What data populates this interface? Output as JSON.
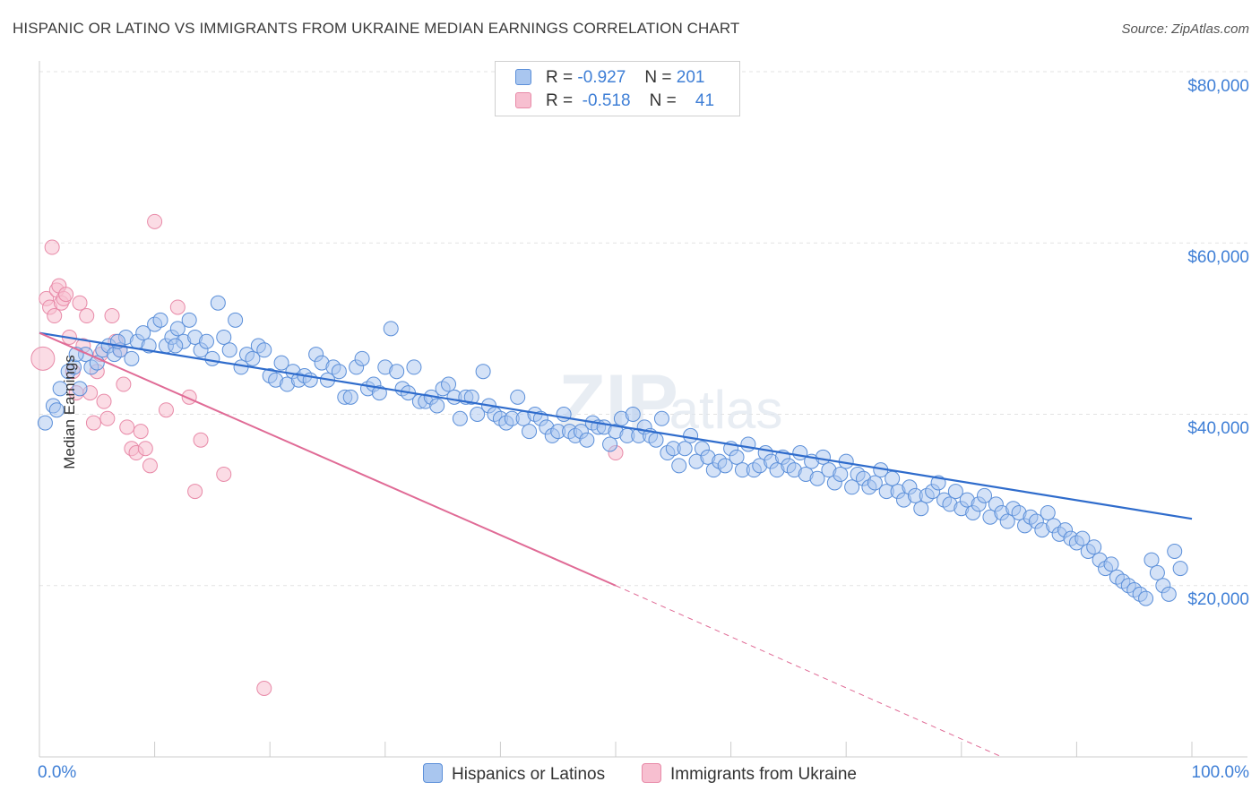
{
  "title": "HISPANIC OR LATINO VS IMMIGRANTS FROM UKRAINE MEDIAN EARNINGS CORRELATION CHART",
  "source": "Source: ZipAtlas.com",
  "colors": {
    "blue_fill": "#a9c6ef",
    "blue_stroke": "#5b8fd9",
    "blue_line": "#2f6ccc",
    "pink_fill": "#f7bfd0",
    "pink_stroke": "#e88aa8",
    "pink_line": "#e06b96",
    "grid": "#e3e3e3",
    "axis_text": "#3f7fd6"
  },
  "legend": {
    "rows": [
      {
        "r_label": "R =",
        "r_value": "-0.927",
        "n_label": "N =",
        "n_value": "201"
      },
      {
        "r_label": "R =",
        "r_value": "-0.518",
        "n_label": "N =",
        "n_value": "41"
      }
    ]
  },
  "bottom_legend": {
    "blue_label": "Hispanics or Latinos",
    "pink_label": "Immigrants from Ukraine"
  },
  "axis": {
    "x_min_label": "0.0%",
    "x_max_label": "100.0%",
    "y_title": "Median Earnings",
    "y_ticks": [
      "$80,000",
      "$60,000",
      "$40,000",
      "$20,000"
    ]
  },
  "chart_data": {
    "type": "scatter",
    "title": "HISPANIC OR LATINO VS IMMIGRANTS FROM UKRAINE MEDIAN EARNINGS CORRELATION CHART",
    "xlabel": "",
    "ylabel": "Median Earnings",
    "xlim": [
      0,
      100
    ],
    "ylim": [
      0,
      80000
    ],
    "y_gridlines": [
      20000,
      40000,
      60000,
      80000
    ],
    "series": [
      {
        "name": "Hispanics or Latinos",
        "r": -0.927,
        "n": 201,
        "trend": {
          "x": [
            0,
            100
          ],
          "y": [
            49500,
            27800
          ]
        },
        "points": [
          [
            0.5,
            39000
          ],
          [
            1.2,
            41000
          ],
          [
            1.8,
            43000
          ],
          [
            2.5,
            45000
          ],
          [
            3,
            45500
          ],
          [
            3.5,
            43000
          ],
          [
            4,
            47000
          ],
          [
            4.5,
            45500
          ],
          [
            5,
            46000
          ],
          [
            5.5,
            47500
          ],
          [
            6,
            48000
          ],
          [
            6.5,
            47000
          ],
          [
            7,
            47500
          ],
          [
            7.5,
            49000
          ],
          [
            8,
            46500
          ],
          [
            8.5,
            48500
          ],
          [
            9,
            49500
          ],
          [
            9.5,
            48000
          ],
          [
            10,
            50500
          ],
          [
            10.5,
            51000
          ],
          [
            11,
            48000
          ],
          [
            11.5,
            49000
          ],
          [
            12,
            50000
          ],
          [
            12.5,
            48500
          ],
          [
            13,
            51000
          ],
          [
            13.5,
            49000
          ],
          [
            14,
            47500
          ],
          [
            14.5,
            48500
          ],
          [
            15,
            46500
          ],
          [
            15.5,
            53000
          ],
          [
            16,
            49000
          ],
          [
            16.5,
            47500
          ],
          [
            17,
            51000
          ],
          [
            17.5,
            45500
          ],
          [
            18,
            47000
          ],
          [
            18.5,
            46500
          ],
          [
            19,
            48000
          ],
          [
            19.5,
            47500
          ],
          [
            20,
            44500
          ],
          [
            20.5,
            44000
          ],
          [
            21,
            46000
          ],
          [
            21.5,
            43500
          ],
          [
            22,
            45000
          ],
          [
            22.5,
            44000
          ],
          [
            23,
            44500
          ],
          [
            23.5,
            44000
          ],
          [
            24,
            47000
          ],
          [
            24.5,
            46000
          ],
          [
            25,
            44000
          ],
          [
            25.5,
            45500
          ],
          [
            26,
            45000
          ],
          [
            26.5,
            42000
          ],
          [
            27,
            42000
          ],
          [
            27.5,
            45500
          ],
          [
            28,
            46500
          ],
          [
            28.5,
            43000
          ],
          [
            29,
            43500
          ],
          [
            29.5,
            42500
          ],
          [
            30,
            45500
          ],
          [
            30.5,
            50000
          ],
          [
            31,
            45000
          ],
          [
            31.5,
            43000
          ],
          [
            32,
            42500
          ],
          [
            32.5,
            45500
          ],
          [
            33,
            41500
          ],
          [
            33.5,
            41500
          ],
          [
            34,
            42000
          ],
          [
            34.5,
            41000
          ],
          [
            35,
            43000
          ],
          [
            35.5,
            43500
          ],
          [
            36,
            42000
          ],
          [
            36.5,
            39500
          ],
          [
            37,
            42000
          ],
          [
            37.5,
            42000
          ],
          [
            38,
            40000
          ],
          [
            38.5,
            45000
          ],
          [
            39,
            41000
          ],
          [
            39.5,
            40000
          ],
          [
            40,
            39500
          ],
          [
            40.5,
            39000
          ],
          [
            41,
            39500
          ],
          [
            41.5,
            42000
          ],
          [
            42,
            39500
          ],
          [
            42.5,
            38000
          ],
          [
            43,
            40000
          ],
          [
            43.5,
            39500
          ],
          [
            44,
            38500
          ],
          [
            44.5,
            37500
          ],
          [
            45,
            38000
          ],
          [
            45.5,
            40000
          ],
          [
            46,
            38000
          ],
          [
            46.5,
            37500
          ],
          [
            47,
            38000
          ],
          [
            47.5,
            37000
          ],
          [
            48,
            39000
          ],
          [
            48.5,
            38500
          ],
          [
            49,
            38500
          ],
          [
            49.5,
            36500
          ],
          [
            50,
            38000
          ],
          [
            50.5,
            39500
          ],
          [
            51,
            37500
          ],
          [
            51.5,
            40000
          ],
          [
            52,
            37500
          ],
          [
            52.5,
            38500
          ],
          [
            53,
            37500
          ],
          [
            53.5,
            37000
          ],
          [
            54,
            39500
          ],
          [
            54.5,
            35500
          ],
          [
            55,
            36000
          ],
          [
            55.5,
            34000
          ],
          [
            56,
            36000
          ],
          [
            56.5,
            37500
          ],
          [
            57,
            34500
          ],
          [
            57.5,
            36000
          ],
          [
            58,
            35000
          ],
          [
            58.5,
            33500
          ],
          [
            59,
            34500
          ],
          [
            59.5,
            34000
          ],
          [
            60,
            36000
          ],
          [
            60.5,
            35000
          ],
          [
            61,
            33500
          ],
          [
            61.5,
            36500
          ],
          [
            62,
            33500
          ],
          [
            62.5,
            34000
          ],
          [
            63,
            35500
          ],
          [
            63.5,
            34500
          ],
          [
            64,
            33500
          ],
          [
            64.5,
            35000
          ],
          [
            65,
            34000
          ],
          [
            65.5,
            33500
          ],
          [
            66,
            35500
          ],
          [
            66.5,
            33000
          ],
          [
            67,
            34500
          ],
          [
            67.5,
            32500
          ],
          [
            68,
            35000
          ],
          [
            68.5,
            33500
          ],
          [
            69,
            32000
          ],
          [
            69.5,
            33000
          ],
          [
            70,
            34500
          ],
          [
            70.5,
            31500
          ],
          [
            71,
            33000
          ],
          [
            71.5,
            32500
          ],
          [
            72,
            31500
          ],
          [
            72.5,
            32000
          ],
          [
            73,
            33500
          ],
          [
            73.5,
            31000
          ],
          [
            74,
            32500
          ],
          [
            74.5,
            31000
          ],
          [
            75,
            30000
          ],
          [
            75.5,
            31500
          ],
          [
            76,
            30500
          ],
          [
            76.5,
            29000
          ],
          [
            77,
            30500
          ],
          [
            77.5,
            31000
          ],
          [
            78,
            32000
          ],
          [
            78.5,
            30000
          ],
          [
            79,
            29500
          ],
          [
            79.5,
            31000
          ],
          [
            80,
            29000
          ],
          [
            80.5,
            30000
          ],
          [
            81,
            28500
          ],
          [
            81.5,
            29500
          ],
          [
            82,
            30500
          ],
          [
            82.5,
            28000
          ],
          [
            83,
            29500
          ],
          [
            83.5,
            28500
          ],
          [
            84,
            27500
          ],
          [
            84.5,
            29000
          ],
          [
            85,
            28500
          ],
          [
            85.5,
            27000
          ],
          [
            86,
            28000
          ],
          [
            86.5,
            27500
          ],
          [
            87,
            26500
          ],
          [
            87.5,
            28500
          ],
          [
            88,
            27000
          ],
          [
            88.5,
            26000
          ],
          [
            89,
            26500
          ],
          [
            89.5,
            25500
          ],
          [
            90,
            25000
          ],
          [
            90.5,
            25500
          ],
          [
            91,
            24000
          ],
          [
            91.5,
            24500
          ],
          [
            92,
            23000
          ],
          [
            92.5,
            22000
          ],
          [
            93,
            22500
          ],
          [
            93.5,
            21000
          ],
          [
            94,
            20500
          ],
          [
            94.5,
            20000
          ],
          [
            95,
            19500
          ],
          [
            95.5,
            19000
          ],
          [
            96,
            18500
          ],
          [
            96.5,
            23000
          ],
          [
            97,
            21500
          ],
          [
            97.5,
            20000
          ],
          [
            98,
            19000
          ],
          [
            98.5,
            24000
          ],
          [
            99,
            22000
          ],
          [
            3.2,
            47000
          ],
          [
            6.8,
            48500
          ],
          [
            11.8,
            48000
          ],
          [
            1.5,
            40500
          ]
        ]
      },
      {
        "name": "Immigrants from Ukraine",
        "r": -0.518,
        "n": 41,
        "trend": {
          "x": [
            0,
            50
          ],
          "y": [
            49500,
            20000
          ]
        },
        "trend_dashed": {
          "x": [
            50,
            83.5
          ],
          "y": [
            20000,
            0
          ]
        },
        "points": [
          [
            0.3,
            46500
          ],
          [
            0.6,
            53500
          ],
          [
            0.9,
            52500
          ],
          [
            1.1,
            59500
          ],
          [
            1.3,
            51500
          ],
          [
            1.5,
            54500
          ],
          [
            1.7,
            55000
          ],
          [
            1.9,
            53000
          ],
          [
            2.1,
            53500
          ],
          [
            2.3,
            54000
          ],
          [
            2.6,
            49000
          ],
          [
            2.9,
            45000
          ],
          [
            3.2,
            42500
          ],
          [
            3.5,
            53000
          ],
          [
            3.8,
            48000
          ],
          [
            4.1,
            51500
          ],
          [
            4.4,
            42500
          ],
          [
            4.7,
            39000
          ],
          [
            5,
            45000
          ],
          [
            5.3,
            47000
          ],
          [
            5.6,
            41500
          ],
          [
            5.9,
            39500
          ],
          [
            6.3,
            51500
          ],
          [
            6.6,
            48500
          ],
          [
            7,
            47500
          ],
          [
            7.3,
            43500
          ],
          [
            7.6,
            38500
          ],
          [
            8,
            36000
          ],
          [
            8.4,
            35500
          ],
          [
            8.8,
            38000
          ],
          [
            9.2,
            36000
          ],
          [
            9.6,
            34000
          ],
          [
            10,
            62500
          ],
          [
            11,
            40500
          ],
          [
            12,
            52500
          ],
          [
            13,
            42000
          ],
          [
            13.5,
            31000
          ],
          [
            14,
            37000
          ],
          [
            16,
            33000
          ],
          [
            19.5,
            8000
          ],
          [
            50,
            35500
          ]
        ]
      }
    ]
  }
}
